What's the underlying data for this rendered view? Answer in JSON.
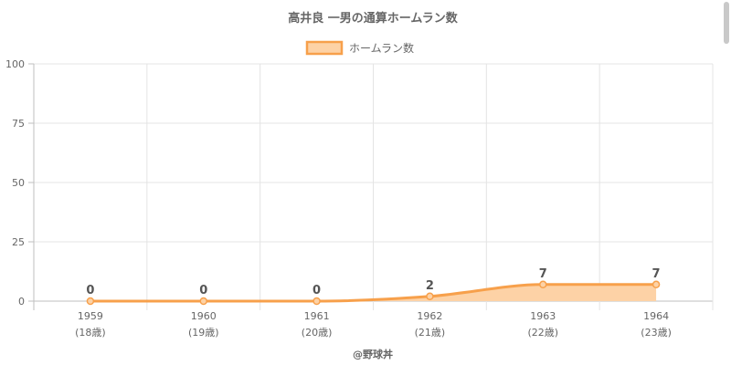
{
  "chart_data": {
    "type": "area",
    "title": "高井良 一男の通算ホームラン数",
    "categories": [
      "1959",
      "1960",
      "1961",
      "1962",
      "1963",
      "1964"
    ],
    "ages": [
      "(18歳)",
      "(19歳)",
      "(20歳)",
      "(21歳)",
      "(22歳)",
      "(23歳)"
    ],
    "series": [
      {
        "name": "ホームラン数",
        "values": [
          0,
          0,
          0,
          2,
          7,
          7
        ]
      }
    ],
    "ylim": [
      0,
      100
    ],
    "yticks": [
      0,
      25,
      50,
      75,
      100
    ],
    "grid": true,
    "legend": "top-center",
    "credit": "@野球丼"
  },
  "colors": {
    "line": "#f7a04b",
    "fill": "#fdd2a6",
    "grid": "#e4e4e4",
    "axis": "#bfbfbf",
    "text": "#666666",
    "label": "#555555"
  }
}
